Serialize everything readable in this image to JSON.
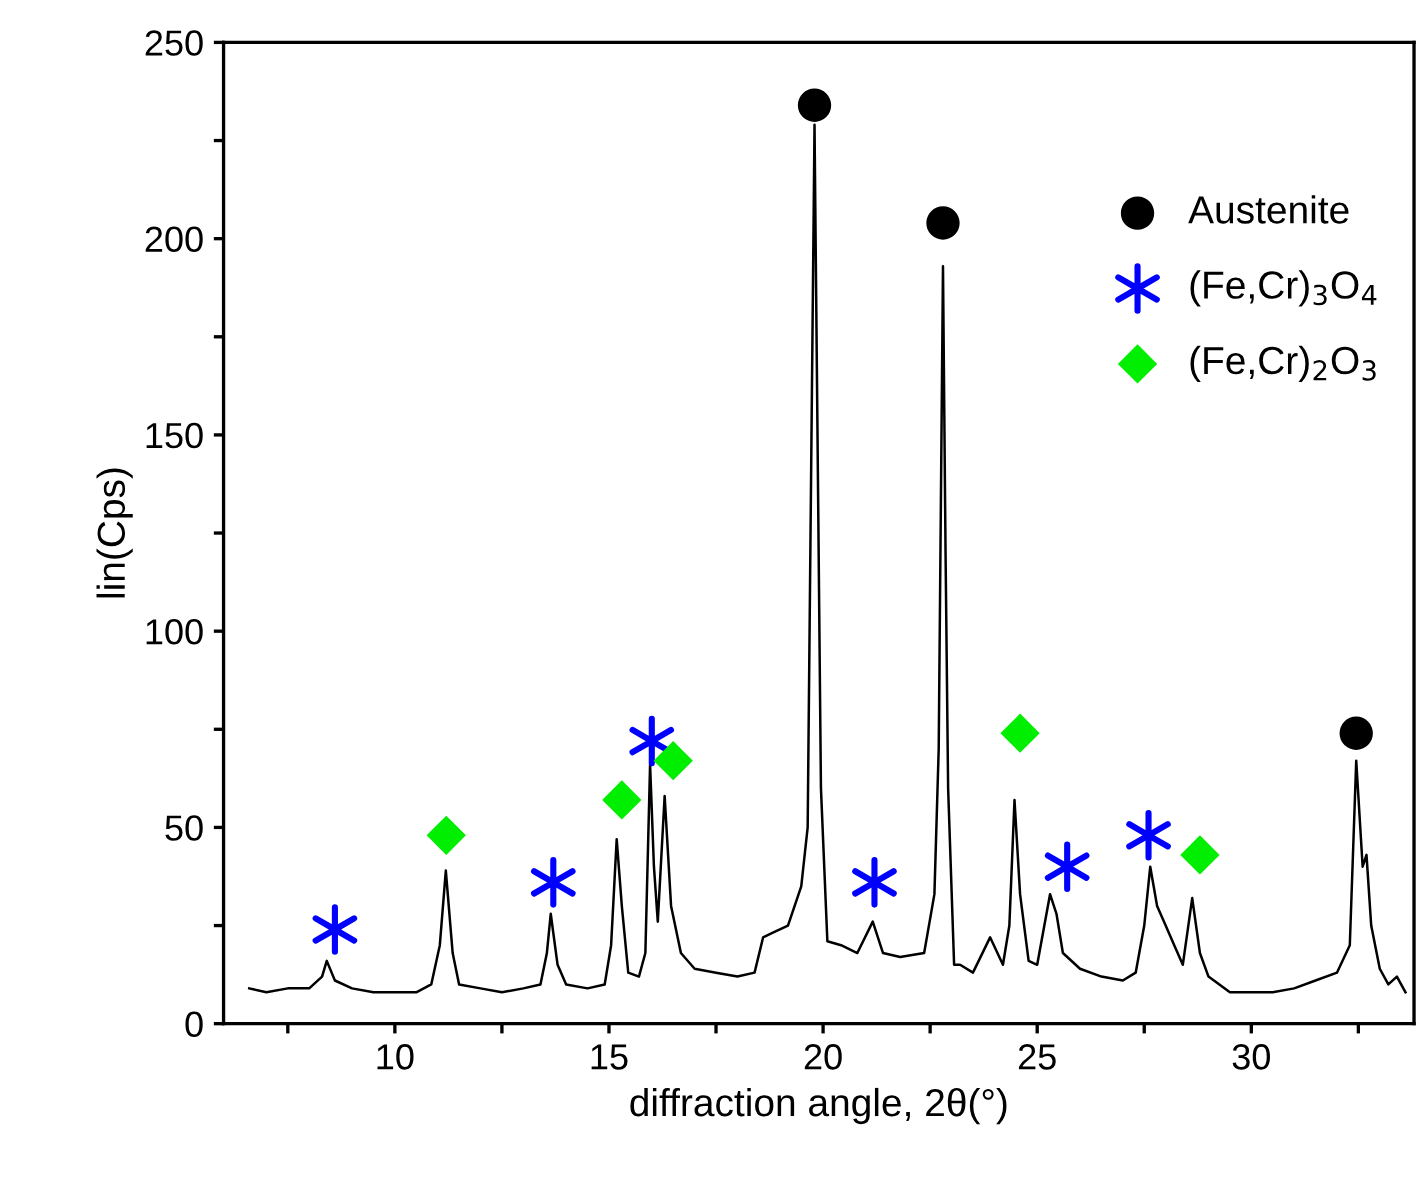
{
  "chart_data": {
    "type": "line",
    "xlabel": "diffraction angle, 2θ(°)",
    "ylabel": "lin(Cps)",
    "xlim": [
      6.0,
      33.8
    ],
    "ylim": [
      0,
      250
    ],
    "xticks": [
      {
        "value": 7.5,
        "label": null
      },
      10,
      {
        "value": 12.5,
        "label": null
      },
      15,
      {
        "value": 17.5,
        "label": null
      },
      20,
      {
        "value": 22.5,
        "label": null
      },
      25,
      {
        "value": 27.5,
        "label": null
      },
      30,
      {
        "value": 32.5,
        "label": null
      }
    ],
    "yticks": [
      0,
      {
        "value": 25,
        "label": null
      },
      50,
      {
        "value": 75,
        "label": null
      },
      100,
      {
        "value": 125,
        "label": null
      },
      150,
      {
        "value": 175,
        "label": null
      },
      200,
      {
        "value": 225,
        "label": null
      },
      250
    ],
    "grid": false,
    "legend": "top right",
    "series": [
      {
        "color": "#000000",
        "marker": "none",
        "line_style": "solid",
        "x": [
          6.6,
          7.0,
          7.5,
          8.0,
          8.3,
          8.41,
          8.6,
          9.0,
          9.5,
          10.0,
          10.5,
          10.85,
          11.05,
          11.19,
          11.35,
          11.5,
          12.0,
          12.5,
          13.0,
          13.4,
          13.55,
          13.64,
          13.8,
          14.0,
          14.5,
          14.9,
          15.05,
          15.18,
          15.3,
          15.45,
          15.7,
          15.85,
          15.96,
          16.05,
          16.14,
          16.3,
          16.45,
          16.68,
          17.0,
          17.5,
          18.0,
          18.4,
          18.6,
          18.79,
          19.18,
          19.49,
          19.64,
          19.8,
          19.95,
          20.1,
          20.42,
          20.8,
          21.16,
          21.4,
          21.8,
          22.36,
          22.6,
          22.7,
          22.8,
          22.86,
          22.92,
          23.06,
          23.2,
          23.5,
          23.9,
          24.2,
          24.35,
          24.47,
          24.6,
          24.8,
          25.0,
          25.3,
          25.45,
          25.6,
          26.0,
          26.5,
          27.0,
          27.3,
          27.5,
          27.64,
          27.8,
          28.0,
          28.2,
          28.4,
          28.62,
          28.8,
          29.0,
          29.5,
          30.0,
          30.5,
          31.0,
          31.5,
          32.0,
          32.3,
          32.45,
          32.6,
          32.69,
          32.8,
          33.0,
          33.2,
          33.4,
          33.6
        ],
        "values": [
          9,
          8,
          9,
          9,
          12,
          16,
          11,
          9,
          8,
          8,
          8,
          10,
          20,
          39,
          18,
          10,
          9,
          8,
          9,
          10,
          18,
          28,
          15,
          10,
          9,
          10,
          20,
          47,
          30,
          13,
          12,
          18,
          66,
          40,
          26,
          58,
          30,
          18,
          14,
          13,
          12,
          13,
          22,
          23,
          25,
          35,
          50,
          229,
          60,
          21,
          20,
          18,
          26,
          18,
          17,
          18,
          33,
          70,
          193,
          120,
          60,
          15,
          15,
          13,
          22,
          15,
          25,
          57,
          33,
          16,
          15,
          33,
          28,
          18,
          14,
          12,
          11,
          13,
          25,
          40,
          30,
          25,
          20,
          15,
          32,
          18,
          12,
          8,
          8,
          8,
          9,
          11,
          13,
          20,
          67,
          40,
          43,
          25,
          14,
          10,
          12,
          8
        ]
      },
      {
        "type": "scatter",
        "name": "Austenite",
        "color": "#000000",
        "marker": "circle",
        "x": [
          19.8,
          22.8,
          32.45
        ],
        "values": [
          234,
          204,
          74
        ]
      },
      {
        "type": "scatter",
        "name": "(Fe,Cr)$_{3}$O$_{4}$",
        "color": "#0000ff",
        "marker": "cross",
        "x": [
          8.6,
          13.7,
          16.0,
          21.2,
          25.7,
          27.6
        ],
        "values": [
          24,
          36,
          72,
          36,
          40,
          48
        ]
      },
      {
        "type": "scatter",
        "name": "(Fe,Cr)$_{2}$O$_{3}$",
        "color": "#00ee00",
        "marker": "diamond",
        "x": [
          11.2,
          15.3,
          16.5,
          24.6,
          28.8
        ],
        "values": [
          48,
          57,
          67,
          74,
          43
        ]
      }
    ]
  }
}
